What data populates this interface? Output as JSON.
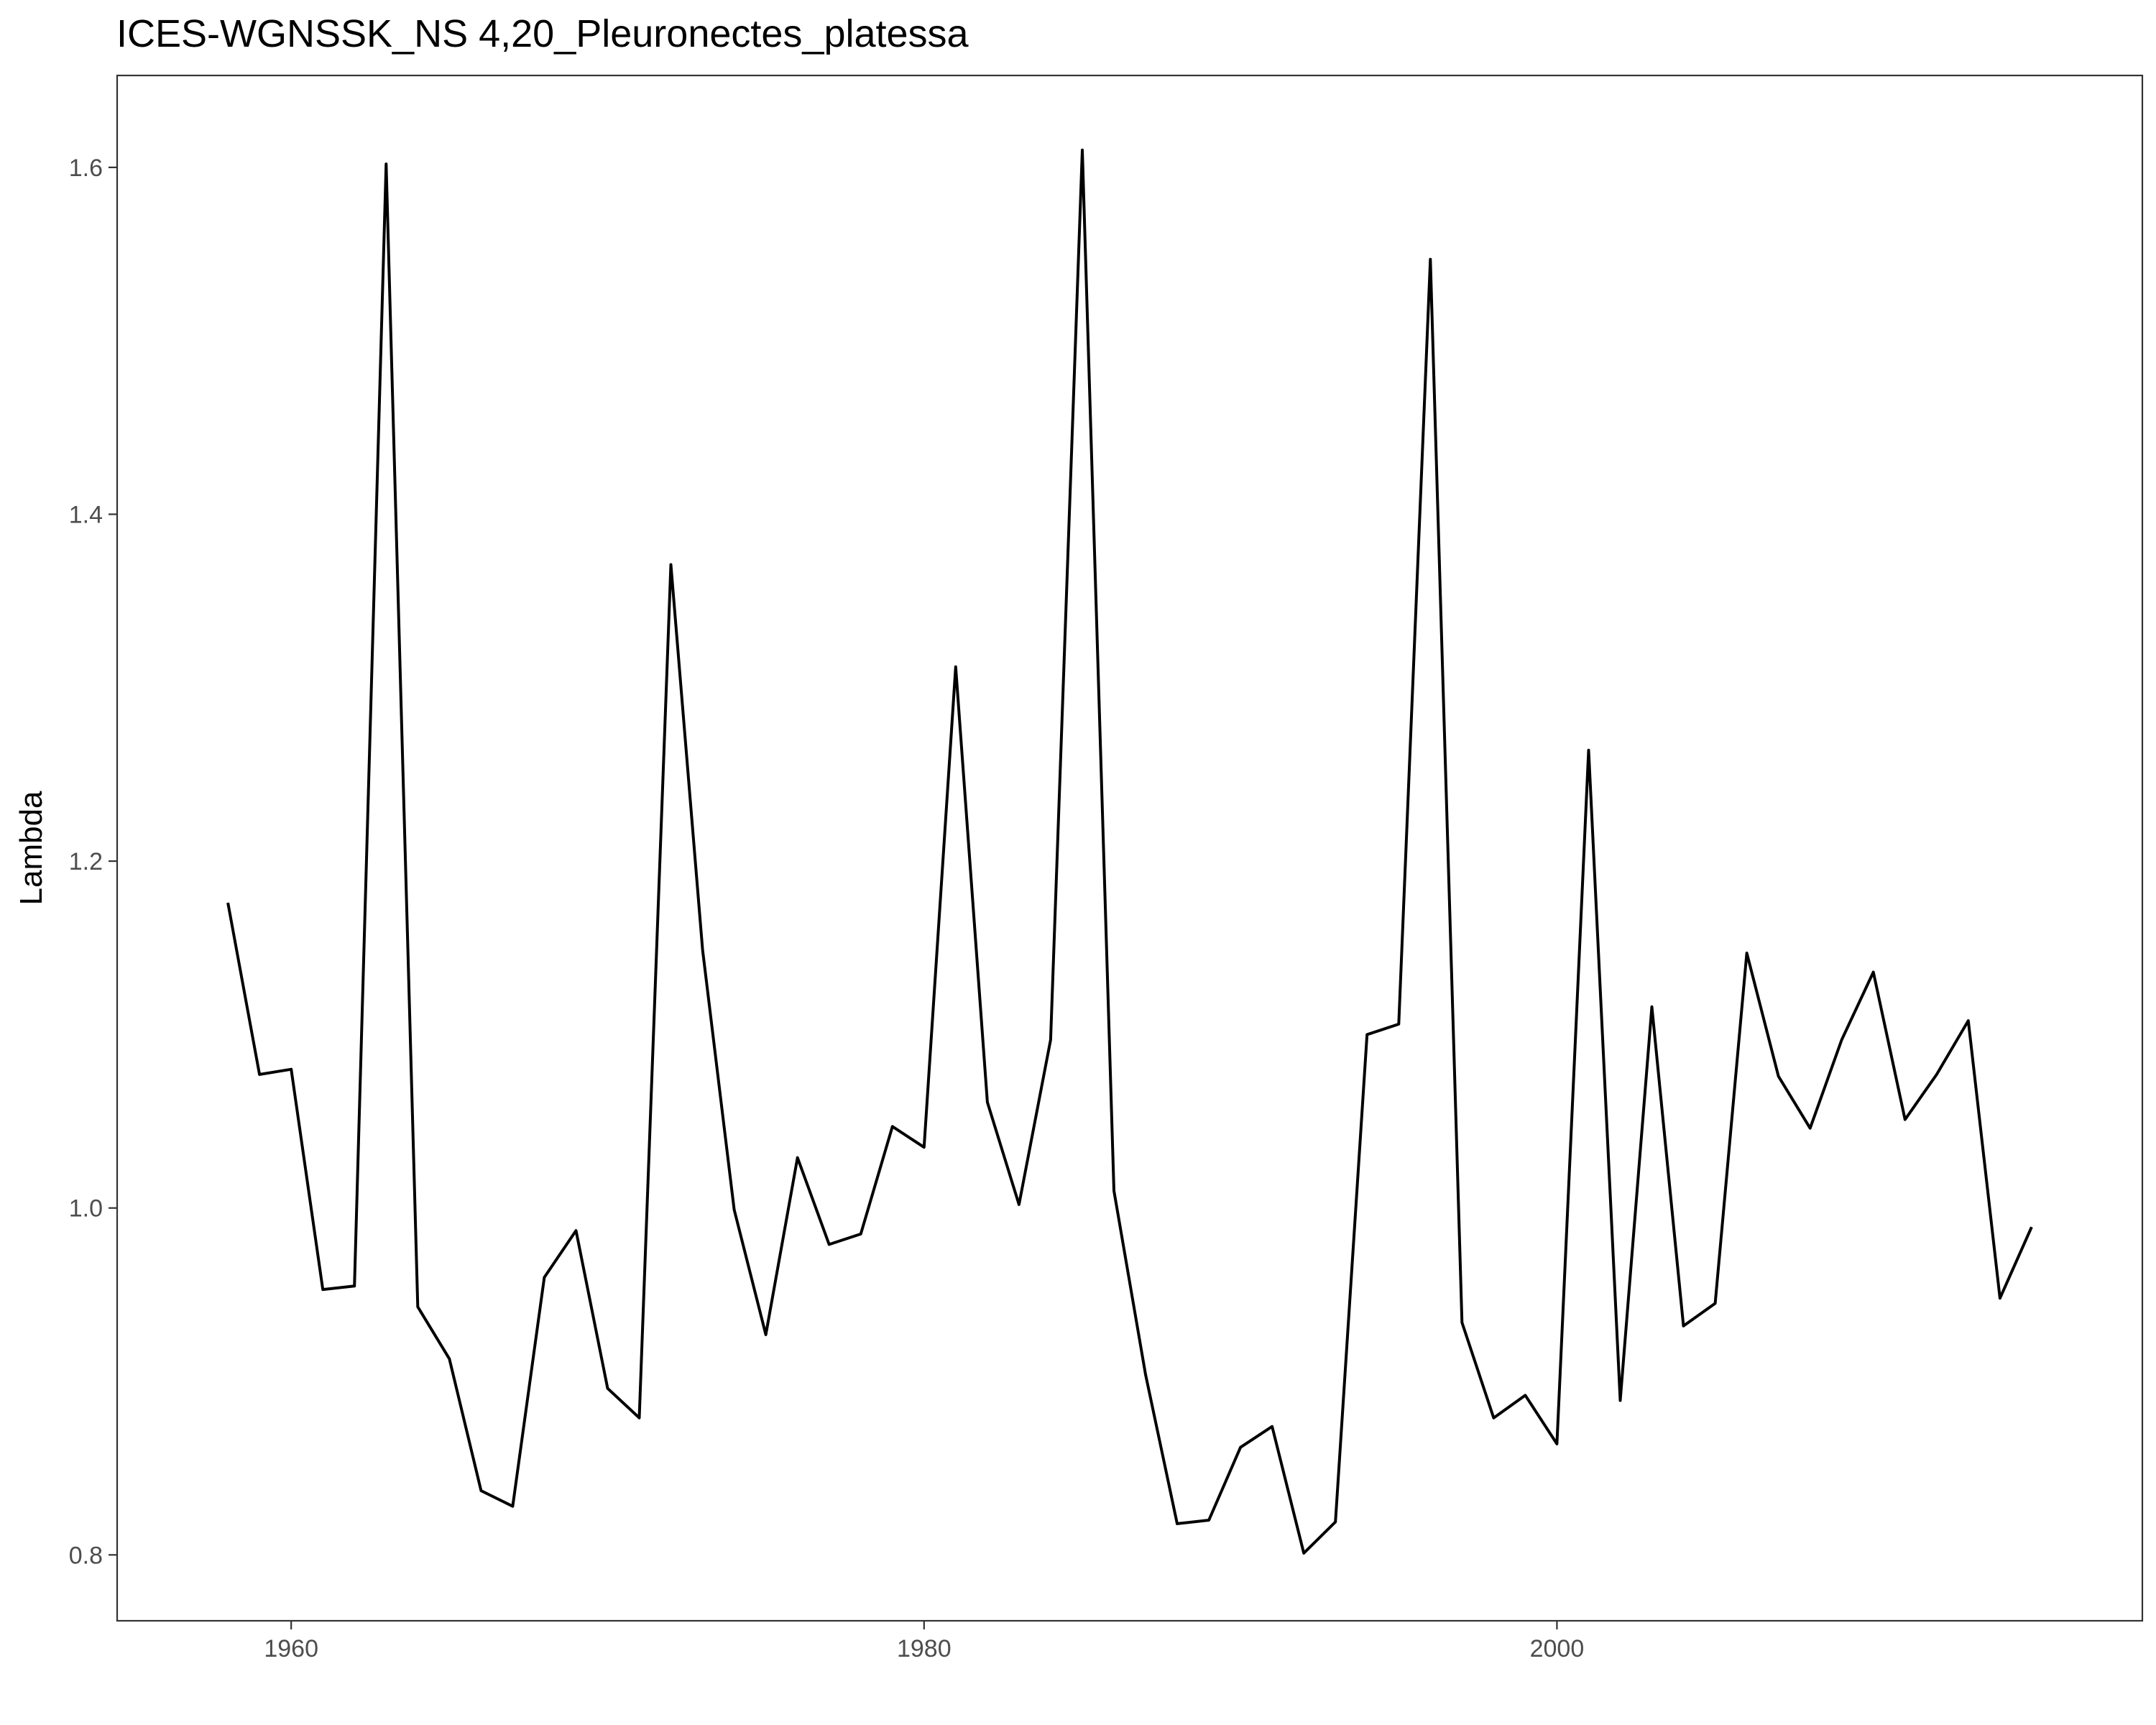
{
  "chart_data": {
    "type": "line",
    "title": "ICES-WGNSSK_NS 4,20_Pleuronectes_platessa",
    "xlabel": "",
    "ylabel": "Lambda",
    "xlim": [
      1954.5,
      2018.5
    ],
    "ylim": [
      0.762,
      1.653
    ],
    "x_ticks": [
      1960,
      1980,
      2000
    ],
    "x_tick_labels": [
      "1960",
      "1980",
      "2000"
    ],
    "y_ticks": [
      0.8,
      1.0,
      1.2,
      1.4,
      1.6
    ],
    "y_tick_labels": [
      "0.8",
      "1.0",
      "1.2",
      "1.4",
      "1.6"
    ],
    "grid": false,
    "legend": "none",
    "line_color": "#000000",
    "series": [
      {
        "x": [
          1958,
          1959,
          1960,
          1961,
          1962,
          1963,
          1964,
          1965,
          1966,
          1967,
          1968,
          1969,
          1970,
          1971,
          1972,
          1973,
          1974,
          1975,
          1976,
          1977,
          1978,
          1979,
          1980,
          1981,
          1982,
          1983,
          1984,
          1985,
          1986,
          1987,
          1988,
          1989,
          1990,
          1991,
          1992,
          1993,
          1994,
          1995,
          1996,
          1997,
          1998,
          1999,
          2000,
          2001,
          2002,
          2003,
          2004,
          2005,
          2006,
          2007,
          2008,
          2009,
          2010,
          2011,
          2012,
          2013,
          2014,
          2015
        ],
        "values": [
          1.176,
          1.077,
          1.08,
          0.953,
          0.955,
          1.602,
          0.943,
          0.913,
          0.837,
          0.828,
          0.96,
          0.987,
          0.896,
          0.879,
          1.371,
          1.149,
          0.999,
          0.927,
          1.029,
          0.979,
          0.985,
          1.047,
          1.035,
          1.312,
          1.061,
          1.002,
          1.097,
          1.61,
          1.01,
          0.904,
          0.818,
          0.82,
          0.862,
          0.874,
          0.801,
          0.819,
          1.1,
          1.106,
          1.547,
          0.934,
          0.879,
          0.892,
          0.864,
          1.264,
          0.889,
          1.116,
          0.932,
          0.945,
          1.147,
          1.076,
          1.046,
          1.097,
          1.136,
          1.051,
          1.077,
          1.108,
          0.948,
          0.989
        ]
      }
    ]
  }
}
